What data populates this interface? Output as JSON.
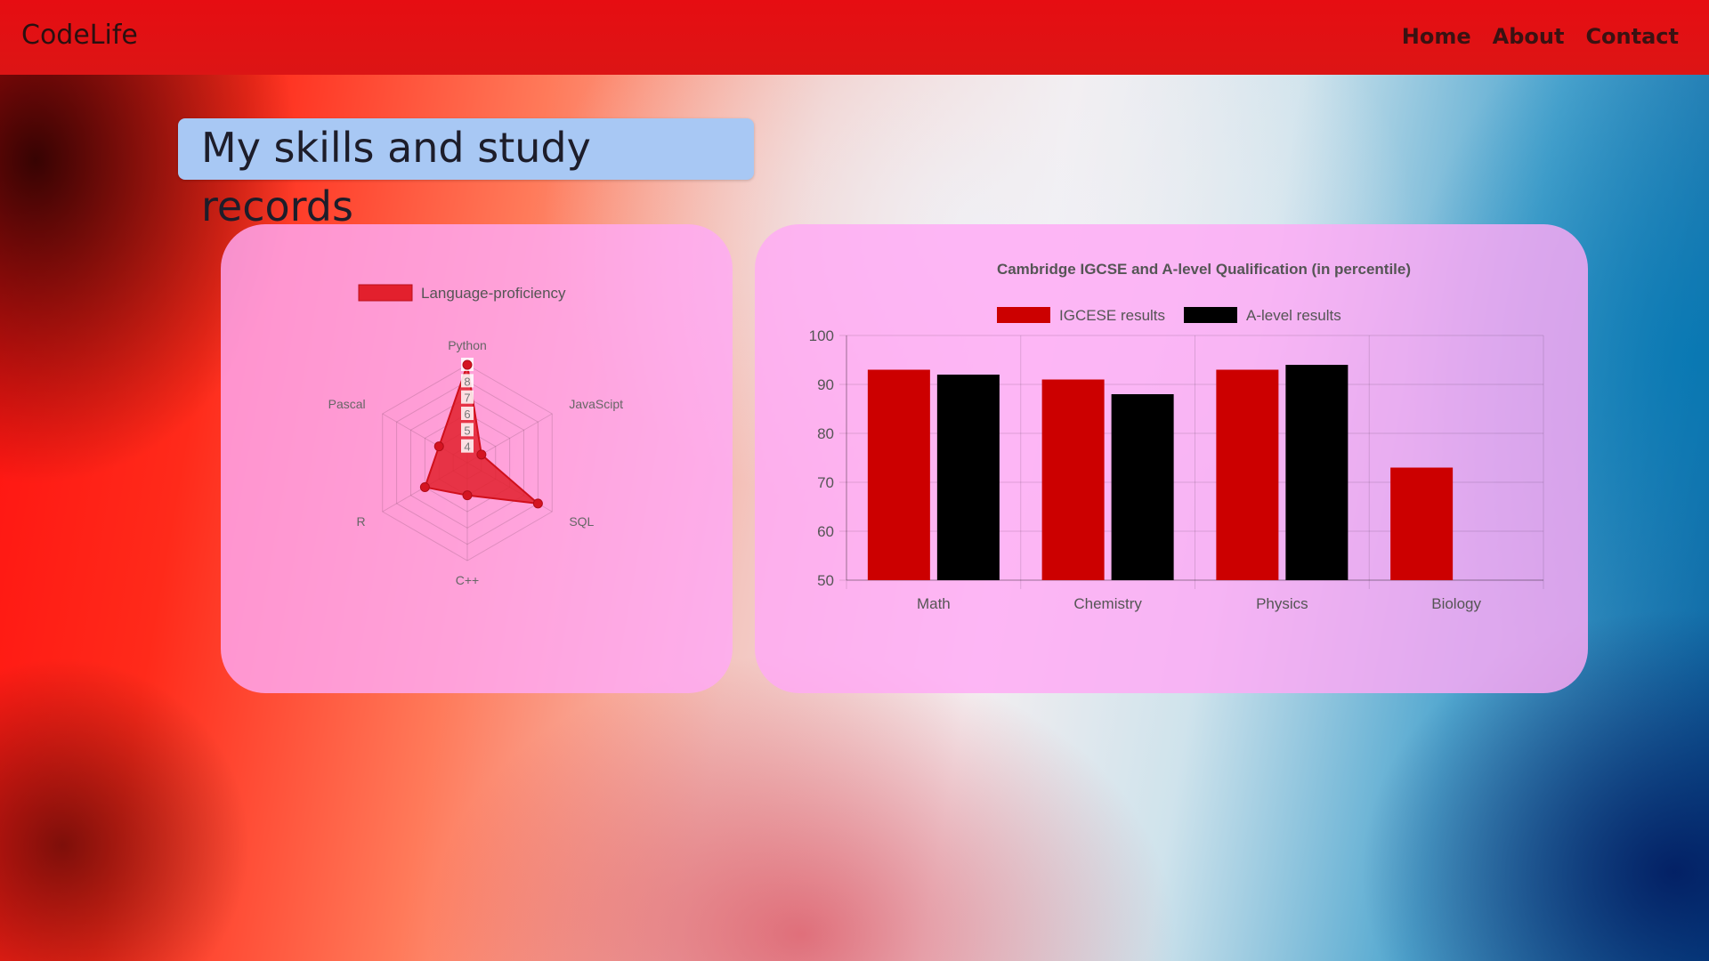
{
  "nav": {
    "brand": "CodeLife",
    "links": [
      {
        "label": "Home"
      },
      {
        "label": "About"
      },
      {
        "label": "Contact"
      }
    ]
  },
  "page": {
    "title": "My skills and study records"
  },
  "colors": {
    "navbar": "#e01515",
    "title_bg": "#a8c8f4",
    "card_bg": "#ffaaf5",
    "radar_fill": "#e3202d",
    "igcse": "#cc0000",
    "alevel": "#000000"
  },
  "chart_data": [
    {
      "type": "radar",
      "title": "",
      "legend": [
        "Language-proficiency"
      ],
      "legend_position": "top",
      "categories": [
        "Python",
        "JavaScipt",
        "SQL",
        "C++",
        "R",
        "Pascal"
      ],
      "series": [
        {
          "name": "Language-proficiency",
          "values": [
            9,
            4,
            8,
            5,
            6,
            5
          ]
        }
      ],
      "r_ticks": [
        "4",
        "5",
        "6",
        "7",
        "8",
        "9"
      ],
      "r_range": [
        3,
        9
      ]
    },
    {
      "type": "bar",
      "title": "Cambridge IGCSE and A-level Qualification (in percentile)",
      "legend_position": "top",
      "categories": [
        "Math",
        "Chemistry",
        "Physics",
        "Biology"
      ],
      "series": [
        {
          "name": "IGCESE results",
          "values": [
            93,
            91,
            93,
            73
          ]
        },
        {
          "name": "A-level results",
          "values": [
            92,
            88,
            94,
            null
          ]
        }
      ],
      "y_ticks": [
        "50",
        "60",
        "70",
        "80",
        "90",
        "100"
      ],
      "ylim": [
        50,
        100
      ],
      "grid": true
    }
  ]
}
